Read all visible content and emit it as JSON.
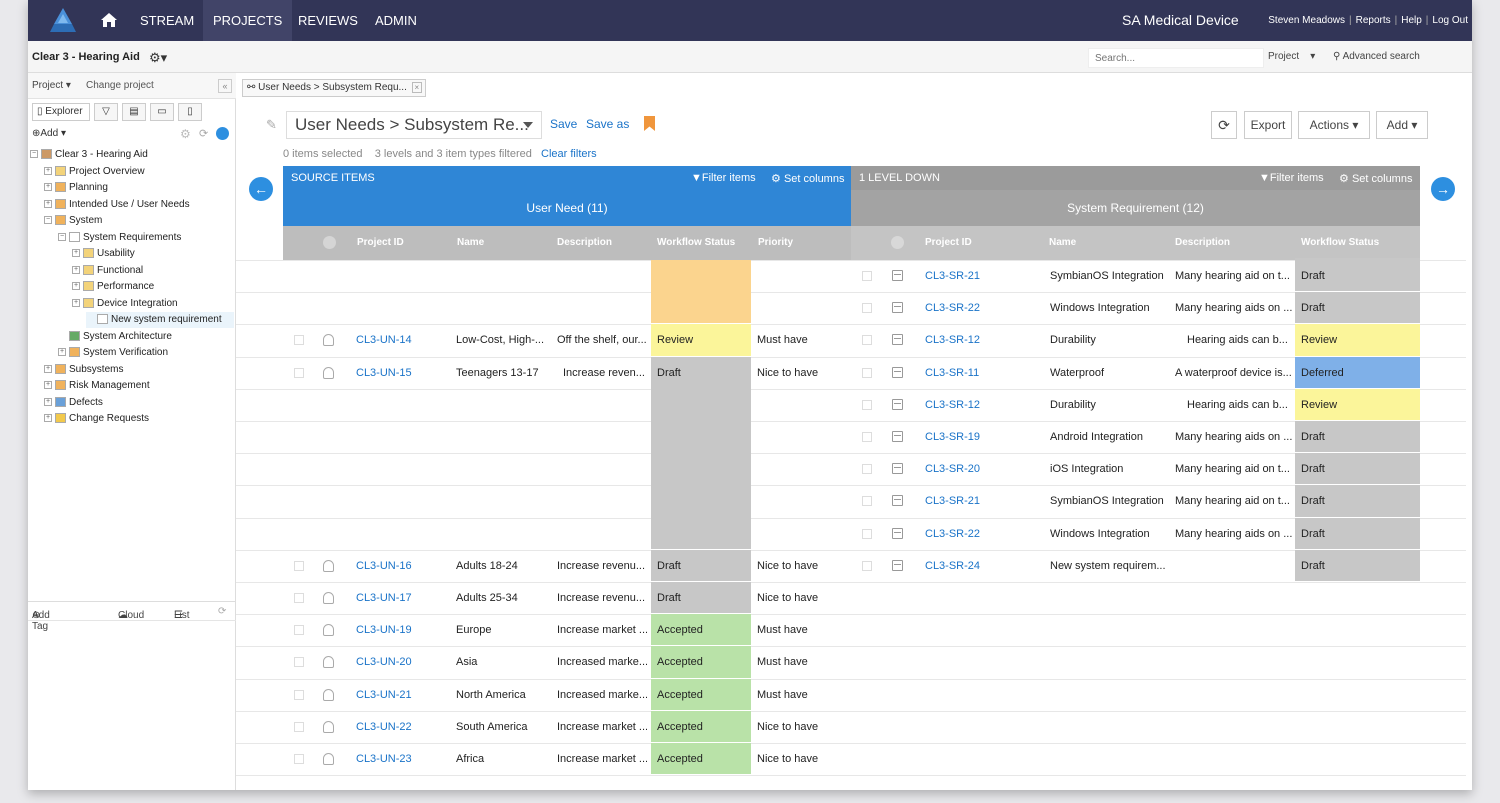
{
  "nav": {
    "items": [
      "STREAM",
      "PROJECTS",
      "REVIEWS",
      "ADMIN"
    ],
    "brand": "SA Medical Device",
    "user_links": [
      "Steven Meadows",
      "Reports",
      "Help",
      "Log Out"
    ]
  },
  "project_bar": {
    "project_name": "Clear 3 - Hearing Aid",
    "search_placeholder": "Search...",
    "scope": "Project",
    "advanced_search": "Advanced search"
  },
  "sidebar": {
    "project_menu": "Project ▾",
    "change_project": "Change project",
    "explorer_tab": "Explorer",
    "add_label": "Add ▾",
    "tree": [
      {
        "label": "Clear 3 - Hearing Aid",
        "level": 0,
        "icon": "project-icon"
      },
      {
        "label": "Project Overview",
        "level": 1,
        "icon": "folder-icon"
      },
      {
        "label": "Planning",
        "level": 1,
        "icon": "grid-icon"
      },
      {
        "label": "Intended Use / User Needs",
        "level": 1,
        "icon": "grid-icon"
      },
      {
        "label": "System",
        "level": 1,
        "icon": "grid-icon"
      },
      {
        "label": "System Requirements",
        "level": 2,
        "icon": "doc-icon"
      },
      {
        "label": "Usability",
        "level": 3,
        "icon": "folder-icon"
      },
      {
        "label": "Functional",
        "level": 3,
        "icon": "folder-icon"
      },
      {
        "label": "Performance",
        "level": 3,
        "icon": "folder-icon"
      },
      {
        "label": "Device Integration",
        "level": 3,
        "icon": "folder-icon"
      },
      {
        "label": "New system requirement",
        "level": 4,
        "icon": "doc-icon"
      },
      {
        "label": "System Architecture",
        "level": 2,
        "icon": "architecture-icon"
      },
      {
        "label": "System Verification",
        "level": 2,
        "icon": "grid-icon"
      },
      {
        "label": "Subsystems",
        "level": 1,
        "icon": "grid-icon"
      },
      {
        "label": "Risk Management",
        "level": 1,
        "icon": "grid-icon"
      },
      {
        "label": "Defects",
        "level": 1,
        "icon": "defect-icon"
      },
      {
        "label": "Change Requests",
        "level": 1,
        "icon": "bulb-icon"
      }
    ],
    "tag_bar": [
      "Add Tag",
      "Cloud",
      "List"
    ]
  },
  "main": {
    "doc_tab": "User Needs > Subsystem Requ...",
    "view_name": "User Needs > Subsystem Re...",
    "save": "Save",
    "save_as": "Save as",
    "export": "Export",
    "actions": "Actions ▾",
    "add": "Add ▾",
    "items_selected": "0 items selected",
    "filter_summary": "3 levels and 3 item types filtered",
    "clear_filters": "Clear filters",
    "source_header": "SOURCE ITEMS",
    "down_header": "1 LEVEL DOWN",
    "filter_items": "Filter items",
    "set_columns": "Set columns",
    "source_type": "User Need (11)",
    "down_type": "System Requirement (12)",
    "source_columns": [
      "Project ID",
      "Name",
      "Description",
      "Workflow Status",
      "Priority"
    ],
    "down_columns": [
      "Project ID",
      "Name",
      "Description",
      "Workflow Status"
    ],
    "source_rows": [
      {
        "id": "CL3-UN-14",
        "name": "Low-Cost, High-...",
        "desc": "Off the shelf, our...",
        "status": "Review",
        "priority": "Must have"
      },
      {
        "id": "CL3-UN-15",
        "name": "Teenagers 13-17",
        "desc": "Increase reven...",
        "status": "Draft",
        "priority": "Nice to have"
      },
      {
        "id": "CL3-UN-16",
        "name": "Adults 18-24",
        "desc": "Increase revenu...",
        "status": "Draft",
        "priority": "Nice to have"
      },
      {
        "id": "CL3-UN-17",
        "name": "Adults 25-34",
        "desc": "Increase revenu...",
        "status": "Draft",
        "priority": "Nice to have"
      },
      {
        "id": "CL3-UN-19",
        "name": "Europe",
        "desc": "Increase market ...",
        "status": "Accepted",
        "priority": "Must have"
      },
      {
        "id": "CL3-UN-20",
        "name": "Asia",
        "desc": "Increased marke...",
        "status": "Accepted",
        "priority": "Must have"
      },
      {
        "id": "CL3-UN-21",
        "name": "North America",
        "desc": "Increased marke...",
        "status": "Accepted",
        "priority": "Must have"
      },
      {
        "id": "CL3-UN-22",
        "name": "South America",
        "desc": "Increase market ...",
        "status": "Accepted",
        "priority": "Nice to have"
      },
      {
        "id": "CL3-UN-23",
        "name": "Africa",
        "desc": "Increase market ...",
        "status": "Accepted",
        "priority": "Nice to have"
      }
    ],
    "down_rows": [
      {
        "id": "CL3-SR-21",
        "name": "SymbianOS Integration",
        "desc": "Many hearing aid on t...",
        "status": "Draft"
      },
      {
        "id": "CL3-SR-22",
        "name": "Windows Integration",
        "desc": "Many hearing aids on ...",
        "status": "Draft"
      },
      {
        "id": "CL3-SR-12",
        "name": "Durability",
        "desc": "Hearing aids can b...",
        "status": "Review"
      },
      {
        "id": "CL3-SR-11",
        "name": "Waterproof",
        "desc": "A waterproof device is...",
        "status": "Deferred"
      },
      {
        "id": "CL3-SR-12",
        "name": "Durability",
        "desc": "Hearing aids can b...",
        "status": "Review"
      },
      {
        "id": "CL3-SR-19",
        "name": "Android Integration",
        "desc": "Many hearing aids on ...",
        "status": "Draft"
      },
      {
        "id": "CL3-SR-20",
        "name": "iOS Integration",
        "desc": "Many hearing aid on t...",
        "status": "Draft"
      },
      {
        "id": "CL3-SR-21",
        "name": "SymbianOS Integration",
        "desc": "Many hearing aid on t...",
        "status": "Draft"
      },
      {
        "id": "CL3-SR-22",
        "name": "Windows Integration",
        "desc": "Many hearing aids on ...",
        "status": "Draft"
      },
      {
        "id": "CL3-SR-24",
        "name": "New system requirem...",
        "desc": "",
        "status": "Draft"
      }
    ],
    "status_colors": {
      "Review": "#fbf59a",
      "Draft": "#c7c7c7",
      "Accepted": "#b9e2a8",
      "Deferred": "#7fb0e8",
      "Unknown": "#fbd48e"
    }
  }
}
